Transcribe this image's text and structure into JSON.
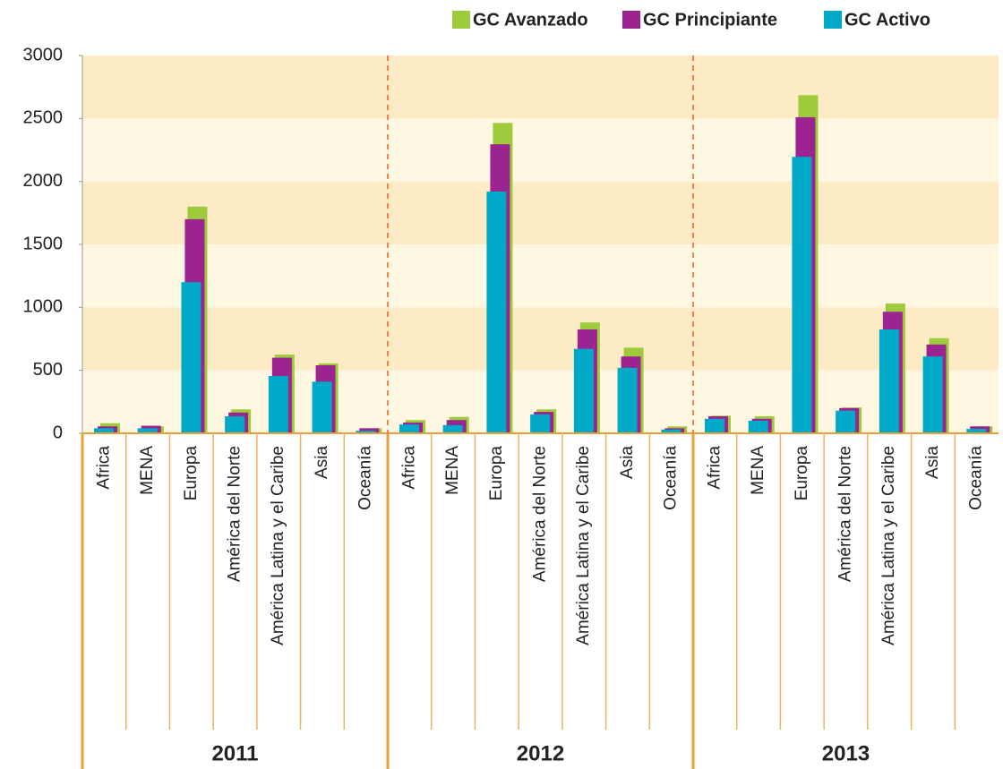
{
  "chart_data": {
    "type": "bar",
    "groups": [
      "2011",
      "2012",
      "2013"
    ],
    "categories": [
      "Africa",
      "MENA",
      "Europa",
      "América del Norte",
      "América Latina y el Caribe",
      "Asia",
      "Oceanía",
      "Africa",
      "MENA",
      "Europa",
      "América del Norte",
      "América Latina y el Caribe",
      "Asia",
      "Oceanía",
      "Africa",
      "MENA",
      "Europa",
      "América del Norte",
      "América Latina y el Caribe",
      "Asia",
      "Oceanía"
    ],
    "series": [
      {
        "name": "GC Avanzado",
        "color": "#9dcb3b",
        "values": [
          80,
          55,
          1800,
          190,
          625,
          555,
          40,
          105,
          130,
          2465,
          190,
          880,
          680,
          55,
          140,
          135,
          2685,
          205,
          1030,
          755,
          55
        ]
      },
      {
        "name": "GC Principiante",
        "color": "#9b2490",
        "values": [
          55,
          60,
          1700,
          165,
          600,
          540,
          40,
          85,
          105,
          2295,
          170,
          825,
          610,
          40,
          135,
          115,
          2510,
          200,
          965,
          705,
          55
        ]
      },
      {
        "name": "GC Activo",
        "color": "#00a9c8",
        "values": [
          40,
          40,
          1200,
          135,
          455,
          410,
          20,
          70,
          65,
          1920,
          150,
          670,
          520,
          30,
          115,
          100,
          2195,
          180,
          825,
          610,
          35
        ]
      }
    ],
    "ylim": [
      0,
      3000
    ],
    "yticks": [
      0,
      500,
      1000,
      1500,
      2000,
      2500,
      3000
    ]
  }
}
